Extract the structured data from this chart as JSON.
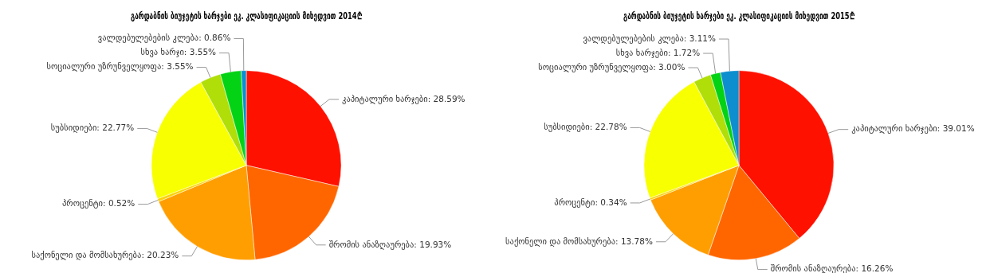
{
  "chart_data": [
    {
      "type": "pie",
      "title": "გარდაბნის ბიუჯეტის ხარჯები ეკ. კლასიფიკაციის მიხედვით 2014₾",
      "categories": [
        "კაპიტალური ხარჯები",
        "შრომის ანაზღაურება",
        "საქონელი და მომსახურება",
        "პროცენტი",
        "სუბსიდიები",
        "სოციალური უზრუნველყოფა",
        "სხვა ხარჯი",
        "ვალდებულებების კლება"
      ],
      "values": [
        28.59,
        19.93,
        20.23,
        0.52,
        22.77,
        3.55,
        3.55,
        0.86
      ],
      "value_labels": [
        "28.59%",
        "19.93%",
        "20.23%",
        "0.52%",
        "22.77%",
        "3.55%",
        "3.55%",
        "0.86%"
      ],
      "colors": [
        "#ff1100",
        "#ff6600",
        "#ff9e01",
        "#fcd202",
        "#f8ff01",
        "#b0de09",
        "#04d215",
        "#0d8ecf"
      ]
    },
    {
      "type": "pie",
      "title": "გარდაბნის ბიუჯეტის ხარჯები ეკ. კლასიფიკაციის მიხედვით 2015₾",
      "categories": [
        "კაპიტალური ხარჯები",
        "შრომის ანაზღაურება",
        "საქონელი და მომსახურება",
        "პროცენტი",
        "სუბსიდიები",
        "სოციალური უზრუნველყოფა",
        "სხვა ხარჯები",
        "ვალდებულებების კლება"
      ],
      "values": [
        39.01,
        16.26,
        13.78,
        0.34,
        22.78,
        3.0,
        1.72,
        3.11
      ],
      "value_labels": [
        "39.01%",
        "16.26%",
        "13.78%",
        "0.34%",
        "22.78%",
        "3.00%",
        "1.72%",
        "3.11%"
      ],
      "colors": [
        "#ff1100",
        "#ff6600",
        "#ff9e01",
        "#fcd202",
        "#f8ff01",
        "#b0de09",
        "#04d215",
        "#0d8ecf"
      ]
    }
  ]
}
